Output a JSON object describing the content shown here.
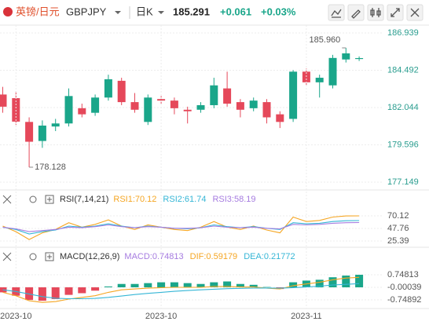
{
  "header": {
    "symbol": "英镑/日元",
    "code": "GBPJPY",
    "period": "日K",
    "price": "185.291",
    "change": "+0.061",
    "change_pct": "+0.03%"
  },
  "chart_data": [
    {
      "type": "candlestick",
      "categories": [
        null,
        "2023-10",
        null,
        null,
        null,
        null,
        null,
        null,
        null,
        null,
        null,
        null,
        "2023-10",
        null,
        null,
        null,
        null,
        null,
        null,
        null,
        null,
        null,
        null,
        "2023-11",
        null,
        null,
        null,
        null
      ],
      "open": [
        182.9,
        182.66,
        181.1,
        179.85,
        180.8,
        181.0,
        182.0,
        181.7,
        182.7,
        183.8,
        182.4,
        181.1,
        182.6,
        182.5,
        181.9,
        181.9,
        182.2,
        183.3,
        182.4,
        182.0,
        182.4,
        181.6,
        181.3,
        184.4,
        183.7,
        183.5,
        185.2,
        185.23
      ],
      "high": [
        183.4,
        183.1,
        181.4,
        181.2,
        181.3,
        183.3,
        182.3,
        182.9,
        184.2,
        184.0,
        183.0,
        182.9,
        182.8,
        182.7,
        182.1,
        182.4,
        184.0,
        184.4,
        182.6,
        182.7,
        182.6,
        181.8,
        184.5,
        184.6,
        184.2,
        185.5,
        185.96,
        185.4
      ],
      "low": [
        181.7,
        180.9,
        178.128,
        179.4,
        180.5,
        180.8,
        181.4,
        181.5,
        182.5,
        182.2,
        181.7,
        180.9,
        182.3,
        181.6,
        181.0,
        181.7,
        182.0,
        182.1,
        181.4,
        181.8,
        181.0,
        180.7,
        181.1,
        183.5,
        182.7,
        183.3,
        185.0,
        185.1
      ],
      "close": [
        182.1,
        181.12,
        179.8,
        180.86,
        181.0,
        182.8,
        181.6,
        182.7,
        183.9,
        182.4,
        181.9,
        182.7,
        182.5,
        182.0,
        181.8,
        182.2,
        183.5,
        182.3,
        181.9,
        182.5,
        181.4,
        181.1,
        184.4,
        183.7,
        184.0,
        185.3,
        185.6,
        185.291
      ],
      "up_color": "#1aa68a",
      "down_color": "#e5485a",
      "ylim": [
        176.737,
        187.454
      ],
      "yticks": [
        177.149,
        179.596,
        182.044,
        184.492,
        186.939
      ],
      "grid": true,
      "annotations": [
        {
          "label": "185.960",
          "value": 185.96
        },
        {
          "label": "178.128",
          "value": 178.128
        }
      ]
    },
    {
      "type": "line",
      "title": "RSI(7,14,21)",
      "series": [
        {
          "name": "RSI1:70.12",
          "color": "#f5a623",
          "values": [
            52,
            42,
            28,
            40,
            46,
            58,
            50,
            55,
            63,
            52,
            46,
            54,
            50,
            46,
            44,
            50,
            60,
            50,
            46,
            52,
            45,
            40,
            68,
            60,
            62,
            68,
            70,
            70.12
          ]
        },
        {
          "name": "RSI2:61.74",
          "color": "#35b6d6",
          "values": [
            50,
            46,
            38,
            42,
            45,
            52,
            50,
            52,
            56,
            52,
            49,
            52,
            50,
            48,
            47,
            49,
            54,
            51,
            49,
            51,
            48,
            46,
            58,
            56,
            57,
            60,
            61.5,
            61.74
          ]
        },
        {
          "name": "RSI3:58.19",
          "color": "#a67ce0",
          "values": [
            50,
            47,
            42,
            44,
            46,
            50,
            49,
            51,
            54,
            51,
            49,
            51,
            50,
            48,
            48,
            49,
            52,
            50,
            49,
            50,
            48,
            47,
            55,
            54,
            55,
            57,
            58,
            58.19
          ]
        }
      ],
      "ylim": [
        18.4,
        91.1
      ],
      "yticks": [
        25.39,
        47.76,
        70.12
      ],
      "grid": true
    },
    {
      "type": "macd",
      "title": "MACD(12,26,9)",
      "histogram": {
        "name": "MACD:0.74813",
        "color": "#a67ce0",
        "values": [
          -0.3,
          -0.5,
          -0.75,
          -0.8,
          -0.7,
          -0.45,
          -0.35,
          -0.2,
          0.05,
          0.2,
          0.2,
          0.25,
          0.3,
          0.3,
          0.25,
          0.2,
          0.3,
          0.35,
          0.2,
          0.15,
          0.02,
          -0.1,
          0.3,
          0.4,
          0.45,
          0.6,
          0.7,
          0.74813
        ]
      },
      "series": [
        {
          "name": "DIF:0.59179",
          "color": "#f5a623",
          "values": [
            -0.3,
            -0.5,
            -0.8,
            -0.9,
            -0.85,
            -0.7,
            -0.6,
            -0.5,
            -0.3,
            -0.15,
            -0.1,
            -0.05,
            -0.02,
            0,
            0,
            0,
            0.05,
            0.05,
            0.02,
            0.02,
            -0.05,
            -0.1,
            0.1,
            0.2,
            0.3,
            0.45,
            0.55,
            0.59179
          ]
        },
        {
          "name": "DEA:0.21772",
          "color": "#35b6d6",
          "values": [
            -0.15,
            -0.25,
            -0.4,
            -0.55,
            -0.65,
            -0.68,
            -0.68,
            -0.66,
            -0.6,
            -0.52,
            -0.43,
            -0.36,
            -0.3,
            -0.24,
            -0.19,
            -0.15,
            -0.11,
            -0.08,
            -0.06,
            -0.04,
            -0.04,
            -0.05,
            -0.02,
            0.02,
            0.07,
            0.14,
            0.18,
            0.21772
          ]
        }
      ],
      "up_color": "#1aa68a",
      "down_color": "#e5485a",
      "ylim": [
        -1.216,
        1.45
      ],
      "yticks": [
        -0.74892,
        -0.00039,
        0.74813
      ],
      "grid": true
    }
  ]
}
